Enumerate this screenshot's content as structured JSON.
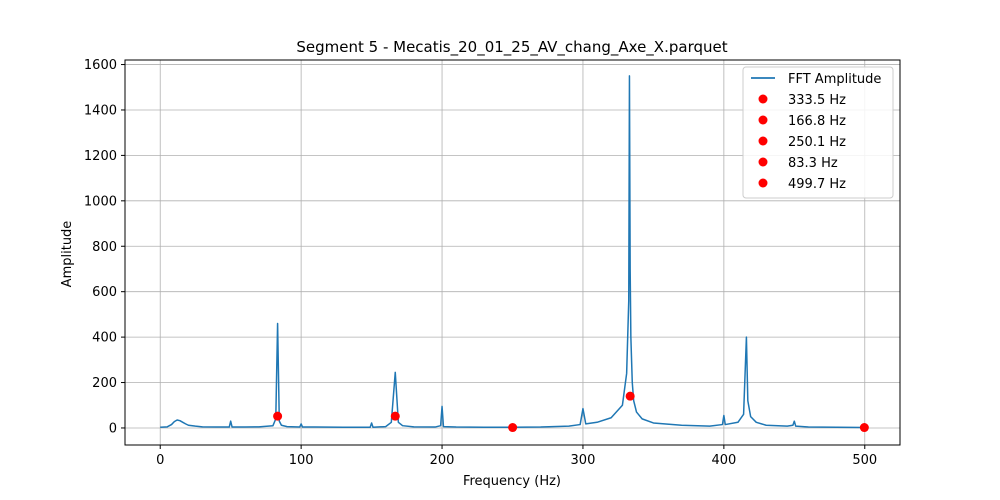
{
  "chart_data": {
    "type": "line",
    "title": "Segment 5 - Mecatis_20_01_25_AV_chang_Axe_X.parquet",
    "xlabel": "Frequency (Hz)",
    "ylabel": "Amplitude",
    "xlim": [
      -25,
      525
    ],
    "ylim": [
      -75,
      1620
    ],
    "xticks": [
      0,
      100,
      200,
      300,
      400,
      500
    ],
    "yticks": [
      0,
      200,
      400,
      600,
      800,
      1000,
      1200,
      1400,
      1600
    ],
    "grid": true,
    "legend_position": "top-right",
    "colors": {
      "line": "#1f77b4",
      "markers": "#ff0000"
    },
    "series": [
      {
        "name": "FFT Amplitude",
        "kind": "line",
        "x": [
          0,
          5,
          8,
          10,
          12,
          14,
          16,
          18,
          20,
          25,
          30,
          40,
          49,
          50,
          51,
          60,
          70,
          80,
          82,
          83.3,
          84.5,
          86,
          90,
          99,
          100,
          101,
          110,
          130,
          149,
          150,
          151,
          160,
          164,
          166.8,
          169,
          172,
          180,
          195,
          199,
          200,
          201,
          210,
          230,
          250,
          270,
          290,
          298,
          300,
          302,
          310,
          320,
          328,
          331,
          332.5,
          333,
          333.5,
          334,
          335,
          336,
          338,
          342,
          350,
          370,
          390,
          399,
          400,
          401,
          410,
          414,
          416,
          417,
          419,
          423,
          430,
          445,
          449,
          450,
          451,
          460,
          480,
          500
        ],
        "y": [
          3,
          5,
          15,
          28,
          35,
          32,
          25,
          18,
          12,
          8,
          5,
          4,
          4,
          30,
          4,
          4,
          5,
          10,
          40,
          460,
          30,
          12,
          6,
          4,
          18,
          4,
          4,
          3,
          3,
          22,
          3,
          6,
          25,
          245,
          25,
          10,
          5,
          4,
          10,
          95,
          6,
          4,
          3,
          3,
          4,
          8,
          15,
          85,
          18,
          25,
          45,
          100,
          240,
          560,
          1550,
          700,
          400,
          200,
          120,
          70,
          40,
          22,
          12,
          8,
          15,
          55,
          15,
          25,
          60,
          400,
          120,
          50,
          25,
          12,
          8,
          12,
          30,
          8,
          4,
          3,
          2
        ]
      },
      {
        "kind": "markers",
        "points": [
          {
            "label": "333.5 Hz",
            "x": 333.5,
            "y": 140
          },
          {
            "label": "166.8 Hz",
            "x": 166.8,
            "y": 52
          },
          {
            "label": "250.1 Hz",
            "x": 250.1,
            "y": 2
          },
          {
            "label": "83.3 Hz",
            "x": 83.3,
            "y": 52
          },
          {
            "label": "499.7 Hz",
            "x": 499.7,
            "y": 2
          }
        ]
      }
    ]
  }
}
